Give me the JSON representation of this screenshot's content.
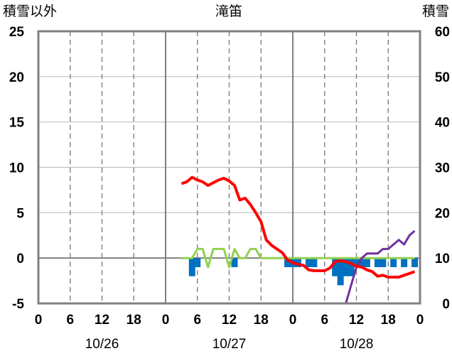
{
  "chart_data": {
    "type": "line",
    "title": "滝笛",
    "left_axis_label": "積雪以外",
    "right_axis_label": "積雪",
    "left_ylim": [
      -5,
      25
    ],
    "right_ylim": [
      0,
      60
    ],
    "left_ticks": [
      "25",
      "20",
      "15",
      "10",
      "5",
      "0",
      "-5"
    ],
    "right_ticks": [
      "60",
      "50",
      "40",
      "30",
      "20",
      "10",
      "0"
    ],
    "x_unit": "hours from 10/26 00:00",
    "xlim": [
      0,
      72
    ],
    "hour_ticks": [
      "0",
      "6",
      "12",
      "18",
      "0",
      "6",
      "12",
      "18",
      "0",
      "6",
      "12",
      "18",
      "0"
    ],
    "day_labels": [
      "10/26",
      "10/27",
      "10/28"
    ],
    "grid": true,
    "series": [
      {
        "color": "#ff0000",
        "axis": "left",
        "x": [
          27,
          28,
          29,
          30,
          31,
          32,
          33,
          34,
          35,
          36,
          37,
          38,
          39,
          40,
          41,
          42,
          43,
          44,
          45,
          46,
          47,
          48,
          49,
          50,
          51,
          52,
          53,
          54,
          55,
          56,
          57,
          58,
          59,
          60,
          61,
          62,
          63,
          64,
          65,
          66,
          67,
          68,
          69,
          70,
          71
        ],
        "values": [
          8.2,
          8.4,
          8.9,
          8.6,
          8.4,
          8.0,
          8.3,
          8.6,
          8.8,
          8.5,
          8.0,
          6.4,
          6.6,
          5.9,
          5.0,
          4.0,
          2.0,
          1.4,
          1.0,
          0.6,
          -0.2,
          -0.5,
          -0.7,
          -0.8,
          -1.3,
          -1.4,
          -1.4,
          -1.4,
          -1.1,
          -0.4,
          -0.3,
          -0.4,
          -0.6,
          -0.9,
          -1.0,
          -1.3,
          -1.5,
          -2.0,
          -1.9,
          -2.1,
          -2.1,
          -2.1,
          -1.9,
          -1.7,
          -1.5
        ]
      },
      {
        "color": "#92d050",
        "axis": "left",
        "x": [
          27,
          28,
          29,
          30,
          31,
          32,
          33,
          34,
          35,
          36,
          37,
          38,
          39,
          40,
          41,
          42,
          43,
          44,
          45,
          46,
          47,
          48,
          49,
          50,
          51,
          52,
          53,
          54,
          55,
          56,
          57,
          58,
          59,
          60,
          61,
          62,
          63,
          64,
          65,
          66,
          67,
          68,
          69,
          70,
          71
        ],
        "values": [
          0,
          0,
          0,
          1,
          1,
          -1,
          1,
          1,
          1,
          -1,
          1,
          0,
          0,
          1,
          1,
          0,
          0,
          0,
          0,
          0,
          0,
          0,
          0,
          0,
          0,
          0,
          0,
          0,
          0,
          0,
          0,
          0,
          0,
          0,
          0,
          0,
          0,
          0,
          0,
          0,
          0,
          0,
          0,
          0,
          0
        ]
      },
      {
        "color": "#7030a0",
        "axis": "right",
        "x": [
          27,
          58,
          59,
          60,
          61,
          62,
          63,
          64,
          65,
          66,
          67,
          68,
          69,
          70,
          71
        ],
        "values": [
          0,
          0,
          4,
          8,
          10,
          11,
          11,
          11,
          12,
          12,
          13,
          14,
          13,
          15,
          16
        ]
      },
      {
        "color": "#0070c0",
        "type": "bar",
        "axis": "left",
        "x": [
          29,
          30,
          37,
          47,
          48,
          49,
          51,
          52,
          56,
          57,
          58,
          59,
          60,
          61,
          62,
          64,
          65,
          67,
          69,
          71
        ],
        "values": [
          -2,
          -1,
          -1,
          -1,
          -1,
          -1,
          -1,
          -1,
          -2,
          -3,
          -2,
          -2,
          -1,
          -1,
          -1,
          -1,
          -1,
          -1,
          -1,
          -1
        ]
      }
    ]
  }
}
